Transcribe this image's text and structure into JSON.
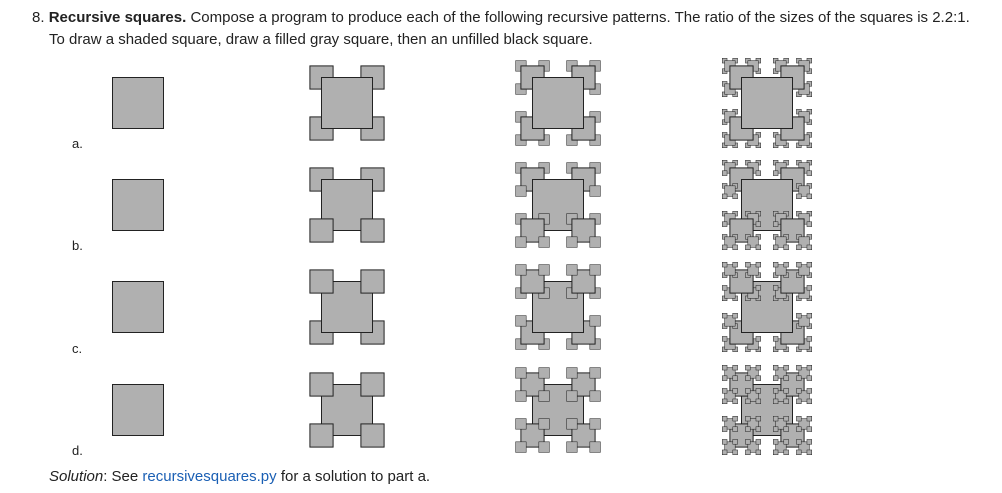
{
  "problem": {
    "number": "8.",
    "title": "Recursive squares.",
    "text_line1": "Compose a program to produce each of the following recursive patterns. The ratio of the sizes of the squares is 2.2:1.",
    "text_line2": "To draw a shaded square, draw a filled gray square, then an unfilled black square."
  },
  "figure": {
    "fill_color": "#b0b0b0",
    "stroke_color": "#222222",
    "levels": [
      0,
      1,
      2,
      3
    ],
    "rows": [
      {
        "label": "a.",
        "pattern": "a"
      },
      {
        "label": "b.",
        "pattern": "b"
      },
      {
        "label": "c.",
        "pattern": "c"
      },
      {
        "label": "d.",
        "pattern": "d"
      }
    ]
  },
  "solution": {
    "prefix": "Solution",
    "see": ": See ",
    "link_text": "recursivesquares.py",
    "suffix": " for a solution to part a."
  }
}
